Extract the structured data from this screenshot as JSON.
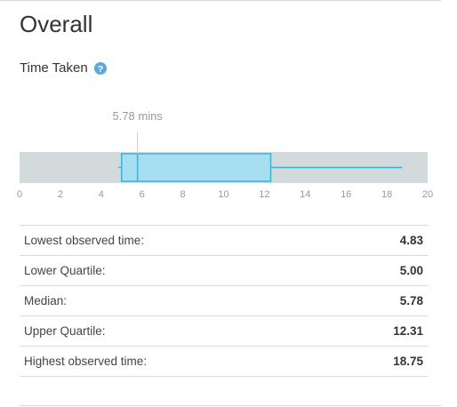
{
  "header": {
    "title": "Overall"
  },
  "section": {
    "title": "Time Taken",
    "help_icon": "question-circle-icon"
  },
  "colors": {
    "accent": "#59a9d9",
    "box_fill": "#a8dff0",
    "box_stroke": "#3bb2d6",
    "track": "#d2dadb",
    "axis_text": "#999999",
    "median_text": "#999999"
  },
  "chart_data": {
    "type": "boxplot",
    "xlim": [
      0,
      20
    ],
    "ticks": [
      0,
      2,
      4,
      6,
      8,
      10,
      12,
      14,
      16,
      18,
      20
    ],
    "tick_labels": [
      "0",
      "2",
      "4",
      "6",
      "8",
      "10",
      "12",
      "14",
      "16",
      "18",
      "20"
    ],
    "min": 4.83,
    "q1": 5.0,
    "median": 5.78,
    "q3": 12.31,
    "max": 18.75,
    "median_label": "5.78 mins"
  },
  "stats": [
    {
      "label": "Lowest observed time:",
      "value": "4.83"
    },
    {
      "label": "Lower Quartile:",
      "value": "5.00"
    },
    {
      "label": "Median:",
      "value": "5.78"
    },
    {
      "label": "Upper Quartile:",
      "value": "12.31"
    },
    {
      "label": "Highest observed time:",
      "value": "18.75"
    }
  ]
}
